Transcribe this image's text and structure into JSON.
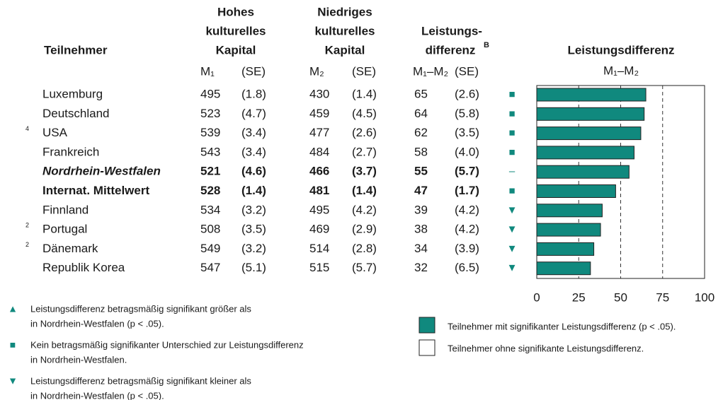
{
  "table": {
    "header": {
      "participant": "Teilnehmer",
      "high": [
        "Hohes",
        "kulturelles",
        "Kapital"
      ],
      "low": [
        "Niedriges",
        "kulturelles",
        "Kapital"
      ],
      "diff": [
        "Leistungs-",
        "differenz"
      ],
      "diff_sup": "B",
      "sub": [
        "M₁",
        "(SE)",
        "M₂",
        "(SE)",
        "M₁–M₂",
        "(SE)"
      ]
    },
    "rows": [
      {
        "name": "Luxemburg",
        "m1": 495,
        "se1": "(1.8)",
        "m2": 430,
        "se2": "(1.4)",
        "se3": "(2.6)",
        "sig": "■"
      },
      {
        "name": "Deutschland",
        "m1": 523,
        "se1": "(4.7)",
        "m2": 459,
        "se2": "(4.5)",
        "se3": "(5.8)",
        "sig": "■"
      },
      {
        "note": "4",
        "name": "USA",
        "m1": 539,
        "se1": "(3.4)",
        "m2": 477,
        "se2": "(2.6)",
        "se3": "(3.5)",
        "sig": "■"
      },
      {
        "name": "Frankreich",
        "m1": 543,
        "se1": "(3.4)",
        "m2": 484,
        "se2": "(2.7)",
        "se3": "(4.0)",
        "sig": "■"
      },
      {
        "name": "Nordrhein-Westfalen",
        "m1": 521,
        "se1": "(4.6)",
        "m2": 466,
        "se2": "(3.7)",
        "se3": "(5.7)",
        "sig": "–"
      },
      {
        "name": "Internat. Mittelwert",
        "m1": 528,
        "se1": "(1.4)",
        "m2": 481,
        "se2": "(1.4)",
        "se3": "(1.7)",
        "sig": "■"
      },
      {
        "name": "Finnland",
        "m1": 534,
        "se1": "(3.2)",
        "m2": 495,
        "se2": "(4.2)",
        "se3": "(4.2)",
        "sig": "▼"
      },
      {
        "note": "2",
        "name": "Portugal",
        "m1": 508,
        "se1": "(3.5)",
        "m2": 469,
        "se2": "(2.9)",
        "se3": "(4.2)",
        "sig": "▼"
      },
      {
        "note": "2",
        "name": "Dänemark",
        "m1": 549,
        "se1": "(3.2)",
        "m2": 514,
        "se2": "(2.8)",
        "se3": "(3.9)",
        "sig": "▼"
      },
      {
        "name": "Republik Korea",
        "m1": 547,
        "se1": "(5.1)",
        "m2": 515,
        "se2": "(5.7)",
        "se3": "(6.5)",
        "sig": "▼"
      }
    ]
  },
  "chart_data": {
    "type": "bar",
    "orientation": "horizontal",
    "title": "Leistungsdifferenz",
    "subtitle": "M₁–M₂",
    "categories": [
      "Luxemburg",
      "Deutschland",
      "USA",
      "Frankreich",
      "Nordrhein-Westfalen",
      "Internat. Mittelwert",
      "Finnland",
      "Portugal",
      "Dänemark",
      "Republik Korea"
    ],
    "values": [
      65,
      64,
      62,
      58,
      55,
      47,
      39,
      38,
      34,
      32
    ],
    "color": "#10897e",
    "xlim": [
      0,
      100
    ],
    "xticks": [
      0,
      25,
      50,
      75,
      100
    ],
    "grid": true
  },
  "legend_symbols": [
    {
      "symbol": "▲",
      "lines": [
        "Leistungsdifferenz betragsmäßig signifikant größer als",
        "in Nordrhein-Westfalen (p < .05)."
      ]
    },
    {
      "symbol": "■",
      "lines": [
        "Kein betragsmäßig signifikanter Unterschied zur Leistungsdifferenz",
        "in Nordrhein-Westfalen."
      ]
    },
    {
      "symbol": "▼",
      "lines": [
        "Leistungsdifferenz betragsmäßig signifikant kleiner als",
        "in Nordrhein-Westfalen (p < .05)."
      ]
    }
  ],
  "legend_boxes": [
    "Teilnehmer mit signifikanter Leistungsdifferenz (p < .05).",
    "Teilnehmer ohne signifikante Leistungsdifferenz."
  ]
}
